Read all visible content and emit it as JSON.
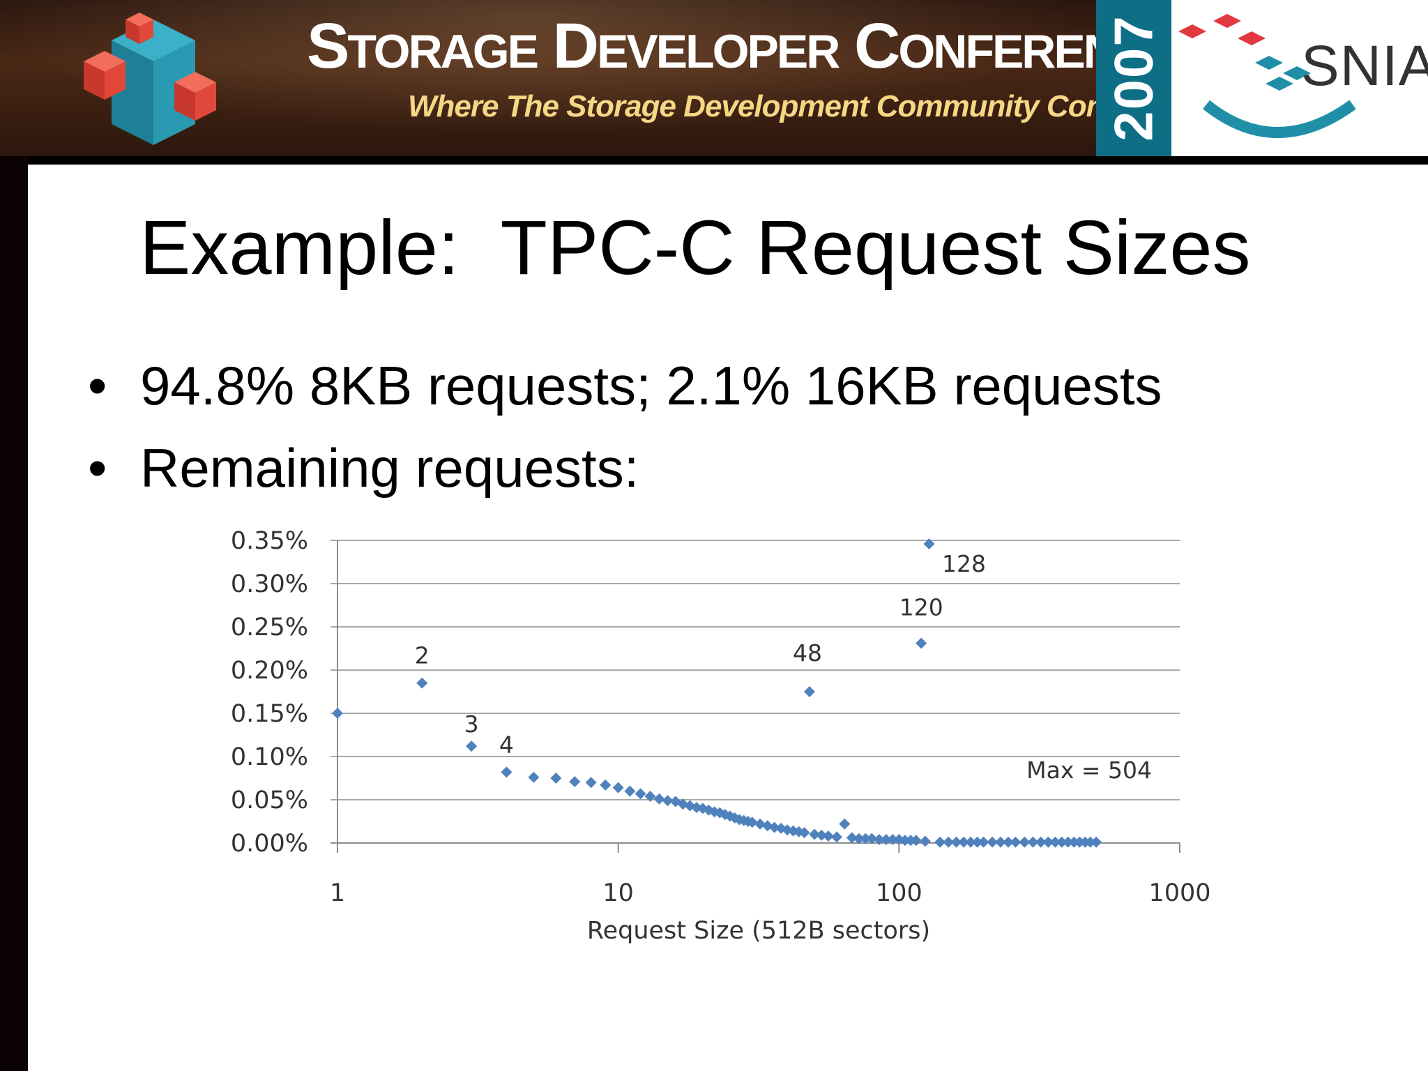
{
  "banner": {
    "title_parts": [
      {
        "cap": "S",
        "rest": "TORAGE"
      },
      {
        "cap": "D",
        "rest": "EVELOPER"
      },
      {
        "cap": "C",
        "rest": "ONFERENCE"
      }
    ],
    "tagline": "Where The Storage Development Community Connects",
    "year": "2007",
    "org": "SNIA"
  },
  "slide": {
    "title": "Example:  TPC-C Request Sizes",
    "bullets": [
      "94.8% 8KB requests; 2.1% 16KB requests",
      "Remaining requests:"
    ]
  },
  "colors": {
    "marker": "#4f81bd",
    "gridline": "#8c8c8c",
    "snia_red": "#e2383f",
    "snia_teal": "#1f8fa8"
  },
  "chart_data": {
    "type": "scatter",
    "x_scale": "log",
    "xlim": [
      1,
      1000
    ],
    "ylim": [
      0,
      0.35
    ],
    "y_unit": "%",
    "xlabel": "Request Size (512B sectors)",
    "ylabel": "",
    "x_ticks": [
      "1",
      "10",
      "100",
      "1000"
    ],
    "y_ticks": [
      "0.00%",
      "0.05%",
      "0.10%",
      "0.15%",
      "0.20%",
      "0.25%",
      "0.30%",
      "0.35%"
    ],
    "grid": true,
    "legend": "none",
    "marker": "diamond",
    "points": [
      {
        "x": 1,
        "y": 0.15
      },
      {
        "x": 2,
        "y": 0.185
      },
      {
        "x": 3,
        "y": 0.112
      },
      {
        "x": 4,
        "y": 0.082
      },
      {
        "x": 5,
        "y": 0.076
      },
      {
        "x": 6,
        "y": 0.075
      },
      {
        "x": 7,
        "y": 0.071
      },
      {
        "x": 8,
        "y": 0.07
      },
      {
        "x": 9,
        "y": 0.067
      },
      {
        "x": 10,
        "y": 0.064
      },
      {
        "x": 11,
        "y": 0.06
      },
      {
        "x": 12,
        "y": 0.057
      },
      {
        "x": 13,
        "y": 0.054
      },
      {
        "x": 14,
        "y": 0.051
      },
      {
        "x": 15,
        "y": 0.049
      },
      {
        "x": 16,
        "y": 0.048
      },
      {
        "x": 17,
        "y": 0.045
      },
      {
        "x": 18,
        "y": 0.043
      },
      {
        "x": 19,
        "y": 0.041
      },
      {
        "x": 20,
        "y": 0.04
      },
      {
        "x": 21,
        "y": 0.038
      },
      {
        "x": 22,
        "y": 0.036
      },
      {
        "x": 23,
        "y": 0.035
      },
      {
        "x": 24,
        "y": 0.033
      },
      {
        "x": 25,
        "y": 0.031
      },
      {
        "x": 26,
        "y": 0.029
      },
      {
        "x": 27,
        "y": 0.027
      },
      {
        "x": 28,
        "y": 0.026
      },
      {
        "x": 29,
        "y": 0.025
      },
      {
        "x": 30,
        "y": 0.024
      },
      {
        "x": 32,
        "y": 0.022
      },
      {
        "x": 34,
        "y": 0.02
      },
      {
        "x": 36,
        "y": 0.018
      },
      {
        "x": 38,
        "y": 0.017
      },
      {
        "x": 40,
        "y": 0.015
      },
      {
        "x": 42,
        "y": 0.014
      },
      {
        "x": 44,
        "y": 0.013
      },
      {
        "x": 46,
        "y": 0.012
      },
      {
        "x": 48,
        "y": 0.175
      },
      {
        "x": 50,
        "y": 0.01
      },
      {
        "x": 53,
        "y": 0.009
      },
      {
        "x": 56,
        "y": 0.008
      },
      {
        "x": 60,
        "y": 0.007
      },
      {
        "x": 64,
        "y": 0.022
      },
      {
        "x": 68,
        "y": 0.006
      },
      {
        "x": 72,
        "y": 0.005
      },
      {
        "x": 76,
        "y": 0.005
      },
      {
        "x": 80,
        "y": 0.005
      },
      {
        "x": 85,
        "y": 0.004
      },
      {
        "x": 90,
        "y": 0.004
      },
      {
        "x": 95,
        "y": 0.004
      },
      {
        "x": 100,
        "y": 0.004
      },
      {
        "x": 105,
        "y": 0.003
      },
      {
        "x": 110,
        "y": 0.003
      },
      {
        "x": 115,
        "y": 0.003
      },
      {
        "x": 120,
        "y": 0.231
      },
      {
        "x": 124,
        "y": 0.002
      },
      {
        "x": 128,
        "y": 0.346
      },
      {
        "x": 140,
        "y": 0.001
      },
      {
        "x": 150,
        "y": 0.001
      },
      {
        "x": 160,
        "y": 0.001
      },
      {
        "x": 170,
        "y": 0.001
      },
      {
        "x": 180,
        "y": 0.001
      },
      {
        "x": 190,
        "y": 0.001
      },
      {
        "x": 200,
        "y": 0.001
      },
      {
        "x": 215,
        "y": 0.001
      },
      {
        "x": 230,
        "y": 0.001
      },
      {
        "x": 245,
        "y": 0.001
      },
      {
        "x": 260,
        "y": 0.001
      },
      {
        "x": 280,
        "y": 0.001
      },
      {
        "x": 300,
        "y": 0.001
      },
      {
        "x": 320,
        "y": 0.001
      },
      {
        "x": 340,
        "y": 0.001
      },
      {
        "x": 360,
        "y": 0.001
      },
      {
        "x": 380,
        "y": 0.001
      },
      {
        "x": 400,
        "y": 0.001
      },
      {
        "x": 420,
        "y": 0.001
      },
      {
        "x": 440,
        "y": 0.001
      },
      {
        "x": 460,
        "y": 0.001
      },
      {
        "x": 480,
        "y": 0.001
      },
      {
        "x": 504,
        "y": 0.001
      }
    ],
    "annotations": [
      {
        "text": "2",
        "x": 2,
        "y": 0.185
      },
      {
        "text": "3",
        "x": 3,
        "y": 0.112
      },
      {
        "text": "4",
        "x": 4,
        "y": 0.082
      },
      {
        "text": "48",
        "x": 48,
        "y": 0.175
      },
      {
        "text": "120",
        "x": 120,
        "y": 0.231
      },
      {
        "text": "128",
        "x": 128,
        "y": 0.346
      },
      {
        "text": "Max = 504",
        "x": 504,
        "y": 0.05
      }
    ]
  }
}
